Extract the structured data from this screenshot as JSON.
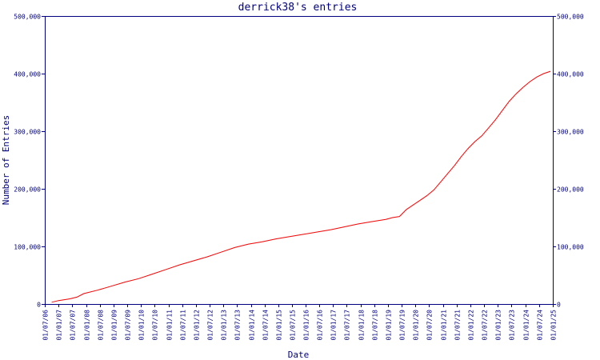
{
  "chart_data": {
    "type": "line",
    "title": "derrick38's entries",
    "xlabel": "Date",
    "ylabel": "Number of Entries",
    "y_ticks": [
      0,
      100000,
      200000,
      300000,
      400000,
      500000
    ],
    "y_tick_labels": [
      "0",
      "100,000",
      "200,000",
      "300,000",
      "400,000",
      "500,000"
    ],
    "ylim": [
      0,
      500000
    ],
    "x_tick_labels": [
      "01/07/06",
      "01/01/07",
      "01/07/07",
      "01/01/08",
      "01/07/08",
      "01/01/09",
      "01/07/09",
      "01/01/10",
      "01/07/10",
      "01/01/11",
      "01/07/11",
      "01/01/12",
      "01/07/12",
      "01/01/13",
      "01/07/13",
      "01/01/14",
      "01/07/14",
      "01/01/15",
      "01/07/15",
      "01/01/16",
      "01/07/16",
      "01/01/17",
      "01/07/17",
      "01/01/18",
      "01/07/18",
      "01/01/19",
      "01/07/19",
      "01/01/20",
      "01/07/20",
      "01/01/21",
      "01/07/21",
      "01/01/22",
      "01/07/22",
      "01/01/23",
      "01/07/23",
      "01/01/24",
      "01/07/24",
      "01/01/25"
    ],
    "y_axis_both_sides": true,
    "grid": false,
    "legend": "none",
    "colors": {
      "series": "#ff0000",
      "axes": "#000080",
      "text": "#000080",
      "background": "#ffffff"
    },
    "series": [
      {
        "x": [
          "2006-10-01",
          "2007-01-01",
          "2007-06-01",
          "2007-09-01",
          "2007-12-01",
          "2008-06-01",
          "2008-12-01",
          "2009-06-01",
          "2009-12-01",
          "2010-06-01",
          "2010-12-01",
          "2011-06-01",
          "2011-12-01",
          "2012-06-01",
          "2012-12-01",
          "2013-06-01",
          "2013-12-01",
          "2014-06-01",
          "2014-12-01",
          "2015-06-01",
          "2015-12-01",
          "2016-06-01",
          "2016-12-01",
          "2017-06-01",
          "2017-12-01",
          "2018-06-01",
          "2018-12-01",
          "2019-03-01",
          "2019-06-01",
          "2019-09-01",
          "2019-12-01",
          "2020-03-01",
          "2020-06-01",
          "2020-09-01",
          "2020-12-01",
          "2021-03-01",
          "2021-06-01",
          "2021-09-01",
          "2021-12-01",
          "2022-03-01",
          "2022-06-01",
          "2022-09-01",
          "2022-12-01",
          "2023-03-01",
          "2023-06-01",
          "2023-09-01",
          "2023-12-01",
          "2024-03-01",
          "2024-06-01",
          "2024-09-01",
          "2024-12-01"
        ],
        "values": [
          3000,
          6000,
          9000,
          12000,
          18000,
          24000,
          31000,
          38000,
          44000,
          52000,
          60000,
          68000,
          75000,
          82000,
          90000,
          98000,
          104000,
          108000,
          113000,
          117000,
          121000,
          125000,
          129000,
          134000,
          139000,
          143000,
          147000,
          150000,
          152000,
          164000,
          172000,
          180000,
          188000,
          198000,
          212000,
          226000,
          240000,
          256000,
          270000,
          282000,
          292000,
          306000,
          320000,
          336000,
          352000,
          365000,
          376000,
          386000,
          394000,
          400000,
          404000
        ]
      }
    ]
  }
}
